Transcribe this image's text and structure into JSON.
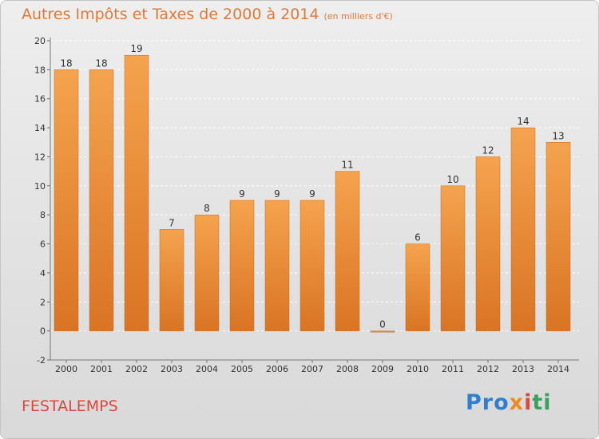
{
  "title": "Autres Impôts et Taxes de 2000 à 2014",
  "subtitle": "(en milliers d'€)",
  "commune": "FESTALEMPS",
  "logo": [
    "Pro",
    "x",
    "i",
    "ti"
  ],
  "colors": {
    "bar_top": "#f5a34e",
    "bar_bottom": "#d97424",
    "title": "#e07a3a",
    "commune": "#e0463f"
  },
  "chart_data": {
    "type": "bar",
    "categories": [
      "2000",
      "2001",
      "2002",
      "2003",
      "2004",
      "2005",
      "2006",
      "2007",
      "2008",
      "2009",
      "2010",
      "2011",
      "2012",
      "2013",
      "2014"
    ],
    "values": [
      18,
      18,
      19,
      7,
      8,
      9,
      9,
      9,
      11,
      0,
      6,
      10,
      12,
      14,
      13
    ],
    "y_ticks": [
      -2,
      0,
      2,
      4,
      6,
      8,
      10,
      12,
      14,
      16,
      18,
      20
    ],
    "ylim": [
      -2,
      20
    ],
    "grid": true,
    "title": "Autres Impôts et Taxes de 2000 à 2014",
    "subtitle": "(en milliers d'€)"
  }
}
